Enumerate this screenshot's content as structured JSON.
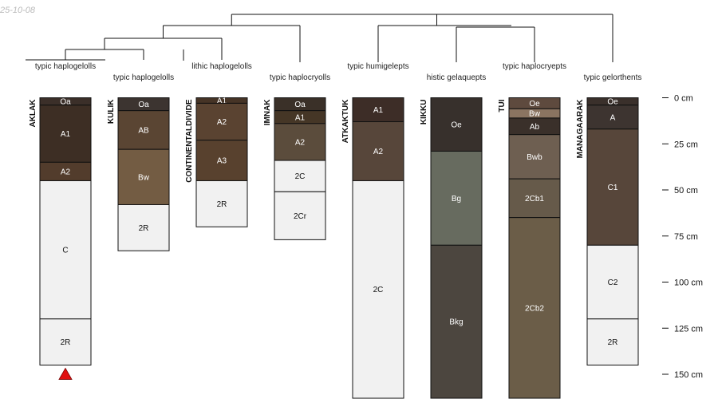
{
  "stamp": "25-10-08",
  "depth_axis": {
    "unit": "cm",
    "ticks": [
      0,
      25,
      50,
      75,
      100,
      125,
      150
    ]
  },
  "profiles": [
    {
      "name": "AKLAK",
      "taxon": "typic haplogelolls",
      "marker": "red-triangle-icon",
      "horizons": [
        {
          "name": "Oa",
          "top": 0,
          "bottom": 4,
          "color": "#3b2f29",
          "text": "#ffffff"
        },
        {
          "name": "A1",
          "top": 4,
          "bottom": 35,
          "color": "#3d2e24",
          "text": "#ffffff"
        },
        {
          "name": "A2",
          "top": 35,
          "bottom": 45,
          "color": "#523c2c",
          "text": "#ffffff"
        },
        {
          "name": "C",
          "top": 45,
          "bottom": 120,
          "color": "#f1f1f1",
          "text": "#111111"
        },
        {
          "name": "2R",
          "top": 120,
          "bottom": 145,
          "color": "#f1f1f1",
          "text": "#111111"
        }
      ]
    },
    {
      "name": "KULIK",
      "taxon": "typic haplogelolls",
      "horizons": [
        {
          "name": "Oa",
          "top": 0,
          "bottom": 7,
          "color": "#3c3430",
          "text": "#ffffff"
        },
        {
          "name": "AB",
          "top": 7,
          "bottom": 28,
          "color": "#5a4533",
          "text": "#ffffff"
        },
        {
          "name": "Bw",
          "top": 28,
          "bottom": 58,
          "color": "#735c43",
          "text": "#ffffff"
        },
        {
          "name": "2R",
          "top": 58,
          "bottom": 83,
          "color": "#f1f1f1",
          "text": "#111111"
        }
      ]
    },
    {
      "name": "CONTINENTALDIVIDE",
      "taxon": "lithic haplogelolls",
      "horizons": [
        {
          "name": "A1",
          "top": 0,
          "bottom": 3,
          "color": "#463426",
          "text": "#ffffff"
        },
        {
          "name": "A2",
          "top": 3,
          "bottom": 23,
          "color": "#5a4331",
          "text": "#ffffff"
        },
        {
          "name": "A3",
          "top": 23,
          "bottom": 45,
          "color": "#58412e",
          "text": "#ffffff"
        },
        {
          "name": "2R",
          "top": 45,
          "bottom": 70,
          "color": "#f1f1f1",
          "text": "#111111"
        }
      ]
    },
    {
      "name": "IMNAK",
      "taxon": "typic haplocryolls",
      "horizons": [
        {
          "name": "Oa",
          "top": 0,
          "bottom": 7,
          "color": "#3a3028",
          "text": "#ffffff"
        },
        {
          "name": "A1",
          "top": 7,
          "bottom": 14,
          "color": "#453626",
          "text": "#ffffff"
        },
        {
          "name": "A2",
          "top": 14,
          "bottom": 34,
          "color": "#5b4c3c",
          "text": "#ffffff"
        },
        {
          "name": "2C",
          "top": 34,
          "bottom": 51,
          "color": "#f1f1f1",
          "text": "#111111"
        },
        {
          "name": "2Cr",
          "top": 51,
          "bottom": 77,
          "color": "#f1f1f1",
          "text": "#111111"
        }
      ]
    },
    {
      "name": "ATKAKTUK",
      "taxon": "typic humigelepts",
      "horizons": [
        {
          "name": "A1",
          "top": 0,
          "bottom": 13,
          "color": "#3d2d27",
          "text": "#ffffff"
        },
        {
          "name": "A2",
          "top": 13,
          "bottom": 45,
          "color": "#57463a",
          "text": "#ffffff"
        },
        {
          "name": "2C",
          "top": 45,
          "bottom": 163,
          "color": "#f1f1f1",
          "text": "#111111"
        }
      ]
    },
    {
      "name": "KIKKU",
      "taxon": "histic gelaquepts",
      "horizons": [
        {
          "name": "Oe",
          "top": 0,
          "bottom": 29,
          "color": "#37302c",
          "text": "#ffffff"
        },
        {
          "name": "Bg",
          "top": 29,
          "bottom": 80,
          "color": "#676b5f",
          "text": "#ffffff"
        },
        {
          "name": "Bkg",
          "top": 80,
          "bottom": 163,
          "color": "#4c463f",
          "text": "#ffffff"
        }
      ]
    },
    {
      "name": "TUI",
      "taxon": "typic haplocryepts",
      "horizons": [
        {
          "name": "Oe",
          "top": 0,
          "bottom": 6,
          "color": "#5e4a3e",
          "text": "#ffffff"
        },
        {
          "name": "Bw",
          "top": 6,
          "bottom": 11,
          "color": "#8a7461",
          "text": "#ffffff"
        },
        {
          "name": "Ab",
          "top": 11,
          "bottom": 20,
          "color": "#3a302a",
          "text": "#ffffff"
        },
        {
          "name": "Bwb",
          "top": 20,
          "bottom": 44,
          "color": "#6e5f51",
          "text": "#ffffff"
        },
        {
          "name": "2Cb1",
          "top": 44,
          "bottom": 65,
          "color": "#665a4a",
          "text": "#ffffff"
        },
        {
          "name": "2Cb2",
          "top": 65,
          "bottom": 163,
          "color": "#6b5d48",
          "text": "#ffffff"
        }
      ]
    },
    {
      "name": "MANAGAARAK",
      "taxon": "typic gelorthents",
      "horizons": [
        {
          "name": "Oe",
          "top": 0,
          "bottom": 4,
          "color": "#3a302b",
          "text": "#ffffff"
        },
        {
          "name": "A",
          "top": 4,
          "bottom": 17,
          "color": "#3d3430",
          "text": "#ffffff"
        },
        {
          "name": "C1",
          "top": 17,
          "bottom": 80,
          "color": "#57463a",
          "text": "#ffffff"
        },
        {
          "name": "C2",
          "top": 80,
          "bottom": 120,
          "color": "#f1f1f1",
          "text": "#111111"
        },
        {
          "name": "2R",
          "top": 120,
          "bottom": 145,
          "color": "#f1f1f1",
          "text": "#111111"
        }
      ]
    }
  ],
  "clusters": [
    {
      "members": [
        0,
        1
      ]
    },
    {
      "members": [
        0,
        1,
        2
      ]
    },
    {
      "members": [
        0,
        1,
        2,
        3
      ]
    },
    {
      "members": [
        5,
        6
      ]
    },
    {
      "members": [
        4,
        5,
        6
      ]
    },
    {
      "members": [
        4,
        5,
        6,
        7
      ]
    },
    {
      "members": [
        0,
        1,
        2,
        3,
        4,
        5,
        6,
        7
      ]
    }
  ]
}
